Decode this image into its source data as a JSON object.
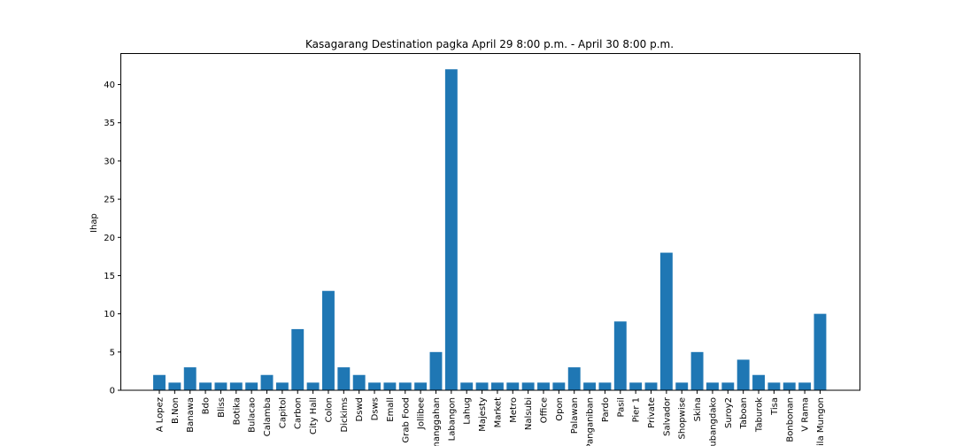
{
  "chart_data": {
    "type": "bar",
    "title": "Kasagarang Destination pagka April 29 8:00 p.m. - April 30 8:00 p.m.",
    "xlabel": "",
    "ylabel": "Ihap",
    "ylim": [
      0,
      44
    ],
    "yticks": [
      0,
      5,
      10,
      15,
      20,
      25,
      30,
      35,
      40
    ],
    "grid": false,
    "legend": "none",
    "bar_color": "#1f77b4",
    "categories": [
      "A Lopez",
      "B.Non",
      "Banawa",
      "Bdo",
      "Bliss",
      "Botika",
      "Bulacao",
      "Calamba",
      "Capitol",
      "Carbon",
      "City Hall",
      "Colon",
      "Dickims",
      "Dswd",
      "Dsws",
      "Emall",
      "Grab Food",
      "Jollibee",
      "Kinanggahan",
      "Labangon",
      "Lahug",
      "Majesty",
      "Market",
      "Metro",
      "Nalsubi",
      "Office",
      "Opon",
      "Palawan",
      "Panganiban",
      "Pardo",
      "Pasil",
      "Pier 1",
      "Private",
      "Salvador",
      "Shopwise",
      "Skina",
      "Subangdako",
      "Suroy2",
      "Taboan",
      "Taburok",
      "Tisa",
      "Bonbonan",
      "V Rama",
      "Vila Mungon"
    ],
    "values": [
      2,
      1,
      3,
      1,
      1,
      1,
      1,
      2,
      1,
      8,
      1,
      13,
      3,
      2,
      1,
      1,
      1,
      1,
      5,
      42,
      1,
      1,
      1,
      1,
      1,
      1,
      1,
      3,
      1,
      1,
      9,
      1,
      1,
      18,
      1,
      5,
      1,
      1,
      4,
      2,
      1,
      1,
      1,
      10
    ]
  }
}
